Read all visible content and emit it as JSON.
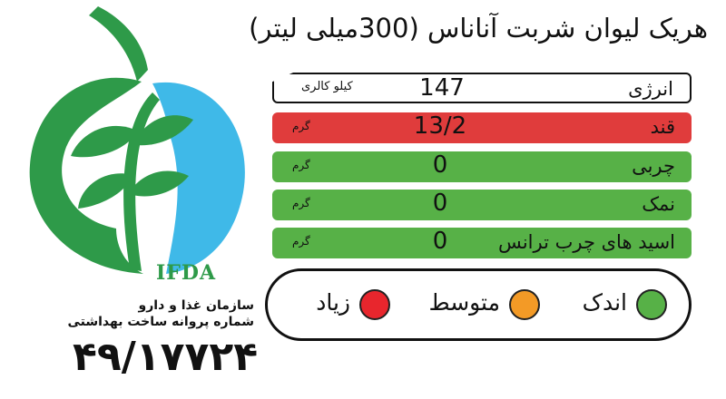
{
  "title": "هریک لیوان شربت آناناس (300میلی لیتر)",
  "logo": {
    "text": "IFDA"
  },
  "organization": {
    "name": "سازمان غذا و دارو",
    "license_label": "شماره پروانه ساخت بهداشتی",
    "license_number": "۴۹/۱۷۷۲۴"
  },
  "rows": [
    {
      "name": "انرژی",
      "value": "147",
      "unit": "کیلو کالری",
      "color": "#ffffff"
    },
    {
      "name": "قند",
      "value": "13/2",
      "unit": "گرم",
      "color": "#e03c3c"
    },
    {
      "name": "چربی",
      "value": "0",
      "unit": "گرم",
      "color": "#57b147"
    },
    {
      "name": "نمک",
      "value": "0",
      "unit": "گرم",
      "color": "#57b147"
    },
    {
      "name": "اسید های چرب ترانس",
      "value": "0",
      "unit": "گرم",
      "color": "#57b147"
    }
  ],
  "legend": [
    {
      "label": "اندک",
      "color": "#57b147"
    },
    {
      "label": "متوسط",
      "color": "#f39a26"
    },
    {
      "label": "زیاد",
      "color": "#e8262d"
    }
  ]
}
